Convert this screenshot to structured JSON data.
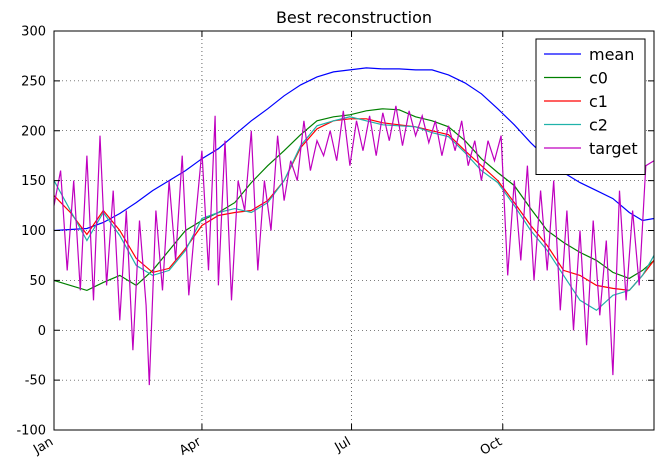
{
  "chart_data": {
    "type": "line",
    "title": "Best reconstruction",
    "xlabel": "",
    "ylabel": "",
    "xlim": [
      0,
      365
    ],
    "ylim": [
      -100,
      300
    ],
    "grid": true,
    "legend_position": "top-right",
    "x_ticks": [
      {
        "label": "Jan",
        "x": 0
      },
      {
        "label": "Apr",
        "x": 90
      },
      {
        "label": "Jul",
        "x": 181
      },
      {
        "label": "Oct",
        "x": 273
      }
    ],
    "y_ticks": [
      -100,
      -50,
      0,
      50,
      100,
      150,
      200,
      250,
      300
    ],
    "series": [
      {
        "name": "mean",
        "color": "#0000ff",
        "x": [
          0,
          10,
          20,
          30,
          40,
          50,
          60,
          70,
          80,
          90,
          100,
          110,
          120,
          130,
          140,
          150,
          160,
          170,
          180,
          190,
          200,
          210,
          220,
          230,
          240,
          250,
          260,
          270,
          280,
          290,
          300,
          310,
          320,
          330,
          340,
          350,
          358,
          365
        ],
        "y": [
          100,
          101,
          102,
          108,
          117,
          128,
          140,
          150,
          160,
          172,
          182,
          196,
          210,
          222,
          235,
          246,
          254,
          259,
          261,
          263,
          262,
          262,
          261,
          261,
          256,
          248,
          237,
          222,
          206,
          188,
          172,
          158,
          148,
          140,
          132,
          118,
          110,
          112
        ]
      },
      {
        "name": "c0",
        "color": "#008000",
        "x": [
          0,
          10,
          20,
          30,
          40,
          50,
          60,
          70,
          80,
          90,
          100,
          110,
          120,
          130,
          140,
          150,
          160,
          170,
          180,
          190,
          200,
          210,
          220,
          230,
          240,
          250,
          260,
          270,
          280,
          290,
          300,
          310,
          320,
          330,
          340,
          350,
          358,
          365
        ],
        "y": [
          50,
          45,
          40,
          48,
          55,
          45,
          60,
          80,
          100,
          110,
          118,
          128,
          148,
          165,
          180,
          196,
          210,
          214,
          216,
          220,
          222,
          221,
          214,
          210,
          204,
          190,
          172,
          158,
          145,
          122,
          100,
          88,
          78,
          70,
          58,
          52,
          60,
          70
        ]
      },
      {
        "name": "c1",
        "color": "#ff0000",
        "x": [
          0,
          10,
          20,
          30,
          40,
          50,
          60,
          70,
          80,
          90,
          100,
          110,
          120,
          130,
          140,
          150,
          160,
          170,
          180,
          190,
          200,
          210,
          220,
          230,
          240,
          250,
          260,
          270,
          280,
          290,
          300,
          310,
          320,
          330,
          340,
          350,
          358,
          365
        ],
        "y": [
          135,
          118,
          96,
          120,
          100,
          72,
          58,
          62,
          82,
          105,
          115,
          118,
          120,
          130,
          150,
          183,
          202,
          210,
          212,
          212,
          208,
          206,
          204,
          200,
          196,
          180,
          165,
          150,
          128,
          105,
          85,
          60,
          55,
          45,
          42,
          40,
          55,
          70
        ]
      },
      {
        "name": "c2",
        "color": "#20b2aa",
        "x": [
          0,
          10,
          20,
          30,
          40,
          50,
          60,
          70,
          80,
          90,
          100,
          110,
          120,
          130,
          140,
          150,
          160,
          170,
          180,
          190,
          200,
          210,
          220,
          230,
          240,
          250,
          260,
          270,
          280,
          290,
          300,
          310,
          320,
          330,
          340,
          350,
          358,
          365
        ],
        "y": [
          150,
          120,
          90,
          118,
          95,
          65,
          55,
          60,
          80,
          112,
          118,
          122,
          118,
          128,
          150,
          185,
          205,
          210,
          214,
          210,
          206,
          205,
          204,
          198,
          194,
          178,
          160,
          148,
          125,
          100,
          80,
          55,
          30,
          20,
          35,
          40,
          55,
          75
        ]
      },
      {
        "name": "target",
        "color": "#bf00bf",
        "x": [
          0,
          4,
          8,
          12,
          16,
          20,
          24,
          28,
          32,
          36,
          40,
          44,
          48,
          52,
          56,
          58,
          62,
          66,
          70,
          74,
          78,
          82,
          86,
          90,
          94,
          98,
          100,
          104,
          108,
          112,
          116,
          120,
          124,
          128,
          132,
          136,
          140,
          144,
          148,
          152,
          156,
          160,
          164,
          168,
          172,
          176,
          180,
          184,
          188,
          192,
          196,
          200,
          204,
          208,
          212,
          216,
          220,
          224,
          228,
          232,
          236,
          240,
          244,
          248,
          252,
          256,
          260,
          264,
          268,
          272,
          276,
          280,
          284,
          288,
          292,
          296,
          300,
          304,
          308,
          312,
          316,
          320,
          324,
          328,
          332,
          336,
          340,
          344,
          348,
          352,
          356,
          360,
          365
        ],
        "y": [
          125,
          160,
          60,
          150,
          40,
          175,
          30,
          195,
          45,
          140,
          10,
          120,
          -20,
          110,
          25,
          -55,
          120,
          40,
          150,
          70,
          175,
          35,
          110,
          180,
          60,
          215,
          45,
          190,
          30,
          150,
          120,
          200,
          60,
          150,
          100,
          195,
          130,
          170,
          150,
          210,
          160,
          190,
          175,
          200,
          170,
          220,
          165,
          210,
          180,
          215,
          175,
          218,
          190,
          225,
          185,
          220,
          195,
          215,
          188,
          210,
          175,
          205,
          180,
          210,
          165,
          190,
          150,
          190,
          170,
          195,
          55,
          150,
          70,
          165,
          50,
          140,
          60,
          150,
          20,
          120,
          0,
          100,
          -15,
          110,
          15,
          90,
          -45,
          140,
          30,
          120,
          45,
          165,
          170
        ]
      }
    ]
  }
}
